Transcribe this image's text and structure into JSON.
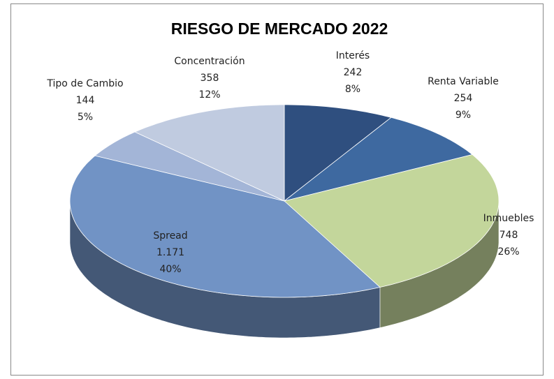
{
  "chart_data": {
    "type": "pie3d",
    "title": "RIESGO DE MERCADO 2022",
    "categories": [
      "Interés",
      "Renta Variable",
      "Inmuebles",
      "Spread",
      "Tipo de Cambio",
      "Concentración"
    ],
    "values": [
      242,
      254,
      748,
      1171,
      144,
      358
    ],
    "value_labels": [
      "242",
      "254",
      "748",
      "1.171",
      "144",
      "358"
    ],
    "percents": [
      8,
      9,
      26,
      40,
      5,
      12
    ],
    "percent_labels": [
      "8%",
      "9%",
      "26%",
      "40%",
      "5%",
      "12%"
    ],
    "colors": [
      "#2f4f7f",
      "#3e69a0",
      "#c3d69b",
      "#7193c5",
      "#a3b5d7",
      "#c0cbe0"
    ]
  }
}
